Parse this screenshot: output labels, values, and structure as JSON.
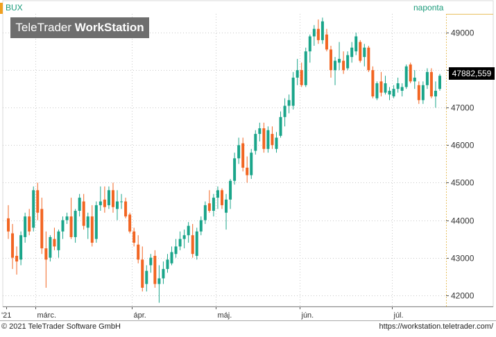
{
  "header": {
    "ticker": "BUX",
    "interval": "naponta"
  },
  "watermark": {
    "brand": "TeleTrader",
    "product": "WorkStation"
  },
  "footer": {
    "copyright": "© 2021 TeleTrader Software GmbH",
    "url": "https://workstation.teletrader.com/"
  },
  "last_value_label": "47882,559",
  "colors": {
    "up": "#1aa58a",
    "down": "#f26522",
    "grid": "#c8c8c8",
    "axis_border": "#e8c060"
  },
  "chart_data": {
    "type": "candlestick",
    "title": "BUX",
    "ylim": [
      41700,
      49500
    ],
    "y_ticks": [
      42000,
      43000,
      44000,
      45000,
      46000,
      47000,
      48000,
      49000
    ],
    "y_tick_labels": [
      "42000",
      "43000",
      "44000",
      "45000",
      "46000",
      "47000",
      "48000",
      "49000"
    ],
    "x_axis_labels": [
      {
        "label": "'21",
        "index": 0
      },
      {
        "label": "márc.",
        "index": 7
      },
      {
        "label": "ápr.",
        "index": 30
      },
      {
        "label": "máj.",
        "index": 50
      },
      {
        "label": "jún.",
        "index": 70
      },
      {
        "label": "júl.",
        "index": 92
      }
    ],
    "last_value": 47882.559,
    "series": [
      {
        "candles": [
          [
            44050,
            44400,
            43500,
            43700
          ],
          [
            43650,
            43900,
            42700,
            43000
          ],
          [
            43050,
            43300,
            42550,
            42900
          ],
          [
            42950,
            43700,
            42800,
            43600
          ],
          [
            43550,
            44200,
            43400,
            44100
          ],
          [
            44100,
            44300,
            43600,
            43700
          ],
          [
            43800,
            44900,
            43700,
            44800
          ],
          [
            44800,
            45000,
            44000,
            44200
          ],
          [
            44300,
            44600,
            43100,
            43250
          ],
          [
            43250,
            43700,
            42200,
            42950
          ],
          [
            43000,
            43600,
            42900,
            43550
          ],
          [
            43500,
            43800,
            43200,
            43300
          ],
          [
            43200,
            43750,
            43000,
            43700
          ],
          [
            43700,
            44100,
            43500,
            44000
          ],
          [
            44000,
            44200,
            43900,
            44100
          ],
          [
            44100,
            44600,
            43500,
            43550
          ],
          [
            43550,
            44300,
            43400,
            44250
          ],
          [
            44250,
            44700,
            44100,
            44600
          ],
          [
            44500,
            44700,
            43750,
            43850
          ],
          [
            43800,
            44200,
            43500,
            44100
          ],
          [
            44100,
            44400,
            43300,
            43400
          ],
          [
            43500,
            44500,
            43400,
            44400
          ],
          [
            44400,
            44900,
            44250,
            44500
          ],
          [
            44550,
            44900,
            44200,
            44350
          ],
          [
            44400,
            44900,
            44300,
            44800
          ],
          [
            44800,
            45000,
            44200,
            44350
          ],
          [
            44300,
            44800,
            44000,
            44500
          ],
          [
            44500,
            44700,
            44300,
            44500
          ],
          [
            44500,
            44600,
            44050,
            44100
          ],
          [
            44150,
            44200,
            43650,
            43700
          ],
          [
            43700,
            43800,
            43300,
            43400
          ],
          [
            43350,
            43600,
            42850,
            42950
          ],
          [
            42950,
            43300,
            42100,
            42200
          ],
          [
            42300,
            42800,
            42100,
            42650
          ],
          [
            42800,
            43100,
            42600,
            43000
          ],
          [
            43050,
            43200,
            42200,
            42300
          ],
          [
            42300,
            42800,
            41800,
            42450
          ],
          [
            42450,
            42900,
            42300,
            42700
          ],
          [
            42700,
            43100,
            42600,
            42950
          ],
          [
            42850,
            43300,
            42800,
            43150
          ],
          [
            43100,
            43500,
            43000,
            43300
          ],
          [
            43300,
            43700,
            43200,
            43500
          ],
          [
            43500,
            43750,
            43250,
            43600
          ],
          [
            43600,
            43950,
            43400,
            43850
          ],
          [
            43600,
            43900,
            43000,
            43100
          ],
          [
            43050,
            43800,
            42950,
            43700
          ],
          [
            43700,
            44100,
            43600,
            44000
          ],
          [
            44000,
            44500,
            43900,
            44400
          ],
          [
            44450,
            44800,
            44200,
            44250
          ],
          [
            44250,
            44700,
            44100,
            44600
          ],
          [
            44600,
            44900,
            44300,
            44800
          ],
          [
            44800,
            44850,
            44300,
            44400
          ],
          [
            44200,
            44700,
            43750,
            44550
          ],
          [
            44550,
            45100,
            44300,
            45050
          ],
          [
            45050,
            45800,
            44950,
            45650
          ],
          [
            45650,
            46200,
            45500,
            46000
          ],
          [
            46050,
            46200,
            45300,
            45400
          ],
          [
            45400,
            45700,
            45000,
            45200
          ],
          [
            45200,
            45900,
            45100,
            45800
          ],
          [
            45850,
            46400,
            45750,
            46300
          ],
          [
            46300,
            46600,
            46100,
            46450
          ],
          [
            46450,
            46600,
            45800,
            45900
          ],
          [
            45900,
            46500,
            45800,
            46400
          ],
          [
            46300,
            46500,
            45900,
            46000
          ],
          [
            45900,
            46350,
            45800,
            46200
          ],
          [
            46250,
            46900,
            46200,
            46750
          ],
          [
            46750,
            47250,
            46500,
            47050
          ],
          [
            47050,
            47350,
            46850,
            47200
          ],
          [
            47050,
            47950,
            46950,
            47800
          ],
          [
            47800,
            48300,
            47600,
            48000
          ],
          [
            48000,
            48200,
            47550,
            47600
          ],
          [
            47600,
            48600,
            47550,
            48500
          ],
          [
            48500,
            48950,
            48200,
            48900
          ],
          [
            48900,
            49200,
            48650,
            49100
          ],
          [
            49100,
            49350,
            48700,
            48800
          ],
          [
            48800,
            49400,
            48700,
            49300
          ],
          [
            48950,
            49100,
            48500,
            48550
          ],
          [
            48550,
            48650,
            47800,
            48000
          ],
          [
            48000,
            48350,
            47600,
            48250
          ],
          [
            48200,
            48750,
            48000,
            48300
          ],
          [
            48250,
            48500,
            47900,
            48000
          ],
          [
            48050,
            48500,
            48000,
            48400
          ],
          [
            48350,
            48750,
            48200,
            48600
          ],
          [
            48500,
            49000,
            48400,
            48900
          ],
          [
            48750,
            48800,
            48200,
            48250
          ],
          [
            48350,
            48700,
            48100,
            48600
          ],
          [
            48600,
            48650,
            47950,
            48000
          ],
          [
            48000,
            48100,
            47250,
            47300
          ],
          [
            47250,
            47700,
            47200,
            47650
          ],
          [
            47700,
            47950,
            47300,
            47400
          ],
          [
            47400,
            47850,
            47350,
            47650
          ],
          [
            47350,
            47550,
            47200,
            47450
          ],
          [
            47300,
            47600,
            47250,
            47500
          ],
          [
            47500,
            47800,
            47400,
            47650
          ],
          [
            47450,
            47650,
            47300,
            47550
          ],
          [
            47550,
            48150,
            47500,
            48100
          ],
          [
            48150,
            48200,
            47650,
            47700
          ],
          [
            47700,
            48000,
            47500,
            47800
          ],
          [
            47600,
            47700,
            47100,
            47200
          ],
          [
            47200,
            47700,
            47100,
            47600
          ],
          [
            47600,
            48050,
            47500,
            47950
          ],
          [
            47950,
            48050,
            47250,
            47300
          ],
          [
            47300,
            47700,
            47000,
            47450
          ],
          [
            47500,
            47900,
            47450,
            47850
          ]
        ]
      }
    ]
  }
}
